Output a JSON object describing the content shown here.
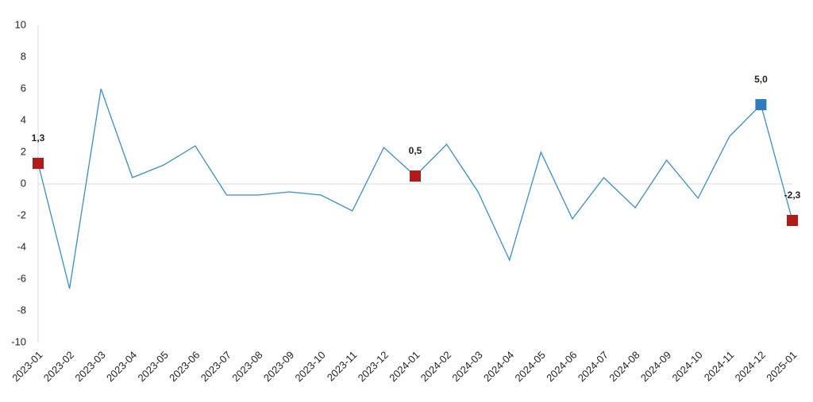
{
  "chart_data": {
    "type": "line",
    "categories": [
      "2023-01",
      "2023-02",
      "2023-03",
      "2023-04",
      "2023-05",
      "2023-06",
      "2023-07",
      "2023-08",
      "2023-09",
      "2023-10",
      "2023-11",
      "2023-12",
      "2024-01",
      "2024-02",
      "2024-03",
      "2024-04",
      "2024-05",
      "2024-06",
      "2024-07",
      "2024-08",
      "2024-09",
      "2024-10",
      "2024-11",
      "2024-12",
      "2025-01"
    ],
    "values": [
      1.3,
      -6.6,
      6.0,
      0.4,
      1.2,
      2.4,
      -0.7,
      -0.7,
      -0.5,
      -0.7,
      -1.7,
      2.3,
      0.5,
      2.5,
      -0.5,
      -4.8,
      2.0,
      -2.2,
      0.4,
      -1.5,
      1.5,
      -0.9,
      3.0,
      5.0,
      -2.3
    ],
    "value_labels": [
      "1,3",
      null,
      null,
      null,
      null,
      null,
      null,
      null,
      null,
      null,
      null,
      null,
      "0,5",
      null,
      null,
      null,
      null,
      null,
      null,
      null,
      null,
      null,
      null,
      "5,0",
      "-2,3"
    ],
    "marker_colors": [
      "#b01c1c",
      null,
      null,
      null,
      null,
      null,
      null,
      null,
      null,
      null,
      null,
      null,
      "#b01c1c",
      null,
      null,
      null,
      null,
      null,
      null,
      null,
      null,
      null,
      null,
      "#2e7bbd",
      "#b01c1c"
    ],
    "color": "#3d8cc4",
    "ylim": [
      -10,
      10
    ],
    "yticks": [
      10,
      8,
      6,
      4,
      2,
      0,
      -2,
      -4,
      -6,
      -8,
      -10
    ],
    "zero_line": true
  }
}
